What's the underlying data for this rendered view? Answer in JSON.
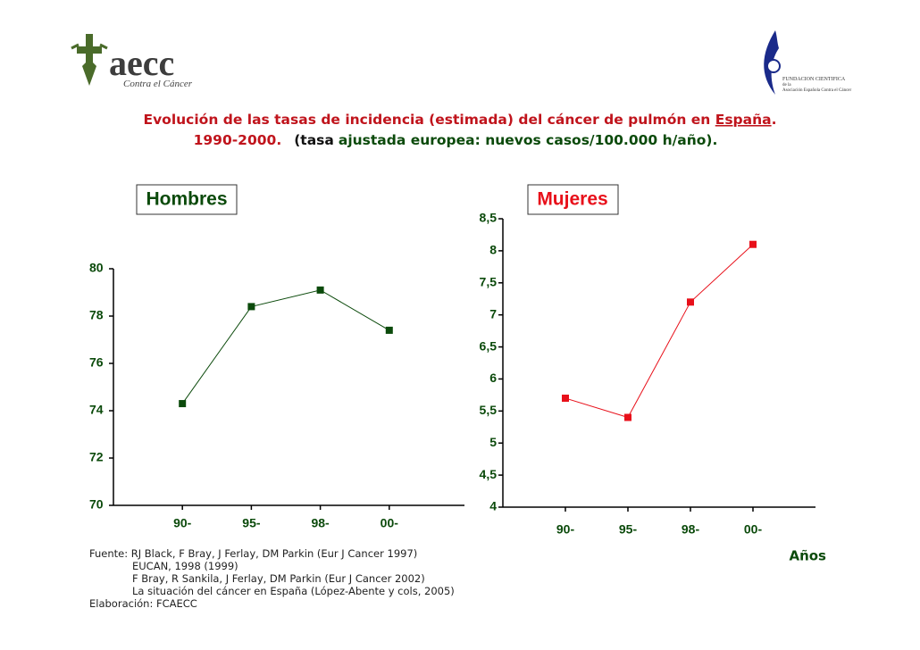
{
  "logo_left": {
    "name": "aecc",
    "tagline": "Contra el Cáncer"
  },
  "logo_right": {
    "lines": [
      "FUNDACION CIENTIFICA",
      "de la",
      "Asociación Española Contra el Cáncer"
    ]
  },
  "title": {
    "line1": [
      "Evolución de las tasas de incidencia (estimada) del cáncer de pulmón en ",
      "España",
      "."
    ],
    "line2": [
      "1990-2000.",
      "(tasa",
      "ajustada europea: nuevos casos/100.000 h/año)."
    ]
  },
  "chart_data": [
    {
      "type": "line",
      "title": "Hombres",
      "categories": [
        "90-",
        "95-",
        "98-",
        "00-"
      ],
      "series": [
        {
          "color": "#0b4a0b",
          "values": [
            74.3,
            78.4,
            79.1,
            77.4
          ]
        }
      ],
      "ylim": [
        70,
        80
      ],
      "yticks": [
        70,
        72,
        74,
        76,
        78,
        80
      ]
    },
    {
      "type": "line",
      "title": "Mujeres",
      "x_label": "Años",
      "categories": [
        "90-",
        "95-",
        "98-",
        "00-"
      ],
      "series": [
        {
          "color": "#e8101a",
          "values": [
            5.7,
            5.4,
            7.2,
            8.1
          ]
        }
      ],
      "ylim": [
        4,
        8.5
      ],
      "yticks": [
        4,
        {
          "value": 4.5,
          "label": "4,5"
        },
        5,
        {
          "value": 5.5,
          "label": "5,5"
        },
        6,
        {
          "value": 6.5,
          "label": "6,5"
        },
        7,
        {
          "value": 7.5,
          "label": "7,5"
        },
        8,
        {
          "value": 8.5,
          "label": "8,5"
        }
      ]
    }
  ],
  "sources": [
    "Fuente: RJ Black, F Bray, J Ferlay, DM Parkin (Eur J Cancer 1997)",
    "EUCAN, 1998 (1999)",
    "F Bray, R Sankila, J Ferlay, DM Parkin (Eur J Cancer 2002)",
    "La situación del cáncer en España (López-Abente y cols, 2005)",
    "Elaboración: FCAECC"
  ]
}
